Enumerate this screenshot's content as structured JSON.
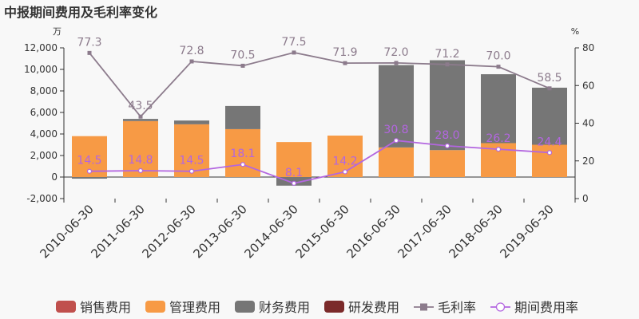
{
  "chart_data": {
    "type": "bar",
    "title": "中报期间费用及毛利率变化",
    "y_left_unit": "万",
    "y_right_unit": "%",
    "y_left_lim": [
      -2000,
      12000
    ],
    "y_left_ticks": [
      "-2,000",
      "0",
      "2,000",
      "4,000",
      "6,000",
      "8,000",
      "10,000",
      "12,000"
    ],
    "y_right_lim": [
      0,
      80
    ],
    "y_right_ticks": [
      "0",
      "20",
      "40",
      "60",
      "80"
    ],
    "categories": [
      "2010-06-30",
      "2011-06-30",
      "2012-06-30",
      "2013-06-30",
      "2014-06-30",
      "2015-06-30",
      "2016-06-30",
      "2017-06-30",
      "2018-06-30",
      "2019-06-30"
    ],
    "series": [
      {
        "name": "销售费用",
        "kind": "bar",
        "color": "#c0504d",
        "values": [
          0,
          0,
          0,
          0,
          0,
          0,
          0,
          0,
          0,
          0
        ]
      },
      {
        "name": "管理费用",
        "kind": "bar",
        "color": "#f79a45",
        "values": [
          3800,
          5200,
          4900,
          4450,
          3250,
          3850,
          2750,
          2500,
          3150,
          3000
        ]
      },
      {
        "name": "财务费用",
        "kind": "bar",
        "color": "#767676",
        "values": [
          -150,
          200,
          350,
          2150,
          -800,
          0,
          7650,
          8350,
          6400,
          5300
        ]
      },
      {
        "name": "研发费用",
        "kind": "bar",
        "color": "#7b2a2a",
        "values": [
          0,
          0,
          0,
          0,
          0,
          0,
          0,
          0,
          0,
          0
        ]
      },
      {
        "name": "毛利率",
        "kind": "line",
        "axis": "right",
        "color": "#8c7b8c",
        "marker": "square",
        "values": [
          77.3,
          43.5,
          72.8,
          70.5,
          77.5,
          71.9,
          72.0,
          71.2,
          70.0,
          58.5
        ],
        "labels": [
          "77.3",
          "43.5",
          "72.8",
          "70.5",
          "77.5",
          "71.9",
          "72.0",
          "71.2",
          "70.0",
          "58.5"
        ]
      },
      {
        "name": "期间费用率",
        "kind": "line",
        "axis": "right",
        "color": "#b366e0",
        "marker": "circle",
        "values": [
          14.5,
          14.8,
          14.5,
          18.1,
          8.1,
          14.2,
          30.8,
          28.0,
          26.2,
          24.4
        ],
        "labels": [
          "14.5",
          "14.8",
          "14.5",
          "18.1",
          "8.1",
          "14.2",
          "30.8",
          "28.0",
          "26.2",
          "24.4"
        ]
      }
    ],
    "legend": "bottom"
  }
}
